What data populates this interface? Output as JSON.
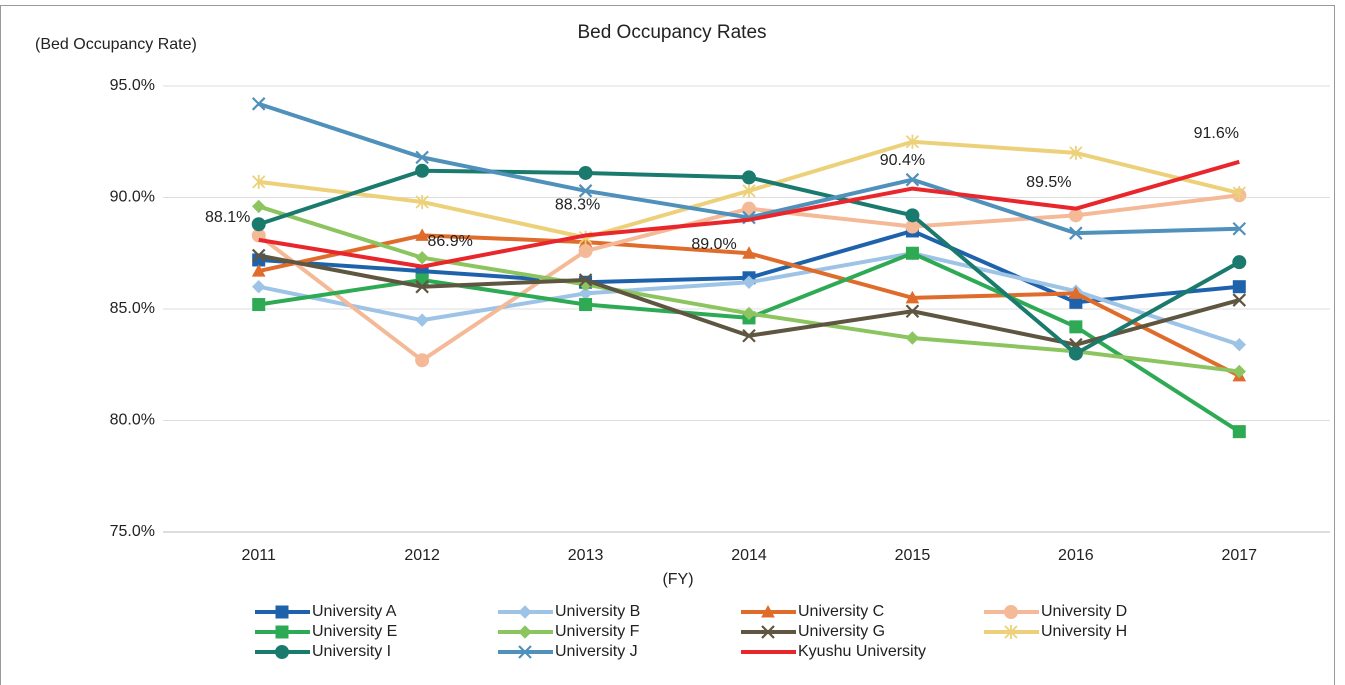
{
  "chart_data": {
    "type": "line",
    "title": "Bed Occupancy Rates",
    "y_label": "(Bed Occupancy Rate)",
    "x_label": "(FY)",
    "categories": [
      "2011",
      "2012",
      "2013",
      "2014",
      "2015",
      "2016",
      "2017"
    ],
    "ylim": [
      75,
      95
    ],
    "yticks": [
      {
        "value": 75,
        "label": "75.0%"
      },
      {
        "value": 80,
        "label": "80.0%"
      },
      {
        "value": 85,
        "label": "85.0%"
      },
      {
        "value": 90,
        "label": "90.0%"
      },
      {
        "value": 95,
        "label": "95.0%"
      }
    ],
    "grid": true,
    "legend": "bottom",
    "series": [
      {
        "name": "University A",
        "color": "#1f62ac",
        "marker": "square",
        "values": [
          87.2,
          86.7,
          86.2,
          86.4,
          88.5,
          85.3,
          86.0
        ]
      },
      {
        "name": "University B",
        "color": "#9dc3e6",
        "marker": "diamond",
        "values": [
          86.0,
          84.5,
          85.7,
          86.2,
          87.5,
          85.8,
          83.4
        ]
      },
      {
        "name": "University C",
        "color": "#e06c2c",
        "marker": "triangle",
        "values": [
          86.7,
          88.3,
          88.0,
          87.5,
          85.5,
          85.7,
          82.0
        ]
      },
      {
        "name": "University D",
        "color": "#f4b996",
        "marker": "circle",
        "values": [
          88.3,
          82.7,
          87.6,
          89.5,
          88.7,
          89.2,
          90.1
        ]
      },
      {
        "name": "University E",
        "color": "#2eaa55",
        "marker": "square",
        "values": [
          85.2,
          86.3,
          85.2,
          84.6,
          87.5,
          84.2,
          79.5
        ]
      },
      {
        "name": "University F",
        "color": "#8cc560",
        "marker": "diamond",
        "values": [
          89.6,
          87.3,
          86.1,
          84.8,
          83.7,
          83.1,
          82.2
        ]
      },
      {
        "name": "University G",
        "color": "#5e5640",
        "marker": "x",
        "values": [
          87.4,
          86.0,
          86.3,
          83.8,
          84.9,
          83.4,
          85.4
        ]
      },
      {
        "name": "University H",
        "color": "#ecd17a",
        "marker": "star",
        "values": [
          90.7,
          89.8,
          88.2,
          90.3,
          92.5,
          92.0,
          90.2
        ]
      },
      {
        "name": "University I",
        "color": "#1a7a6e",
        "marker": "circle",
        "values": [
          88.8,
          91.2,
          91.1,
          90.9,
          89.2,
          83.0,
          87.1
        ]
      },
      {
        "name": "University J",
        "color": "#4f91bb",
        "marker": "x",
        "values": [
          94.2,
          91.8,
          90.3,
          89.1,
          90.8,
          88.4,
          88.6
        ]
      },
      {
        "name": "Kyushu University",
        "color": "#e8262c",
        "marker": "none",
        "values": [
          88.1,
          86.9,
          88.3,
          89.0,
          90.4,
          89.5,
          91.6
        ],
        "value_labels": [
          "88.1%",
          "86.9%",
          "88.3%",
          "89.0%",
          "90.4%",
          "89.5%",
          "91.6%"
        ]
      }
    ]
  }
}
